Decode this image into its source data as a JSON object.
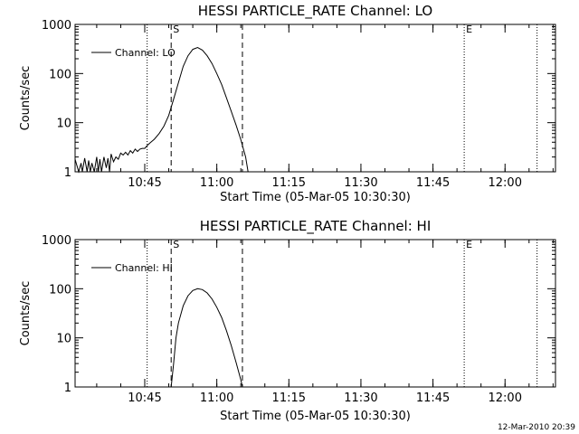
{
  "chart_data": [
    {
      "type": "line",
      "title": "HESSI PARTICLE_RATE Channel: LO",
      "xlabel": "Start Time (05-Mar-05 10:30:30)",
      "ylabel": "Counts/sec",
      "yscale": "log",
      "ylim": [
        1,
        1000
      ],
      "xlim_minutes_from_start": [
        0,
        100
      ],
      "x_ticks": [
        "10:45",
        "11:00",
        "11:15",
        "11:30",
        "11:45",
        "12:00"
      ],
      "y_ticks": [
        "1",
        "10",
        "100",
        "1000"
      ],
      "legend": {
        "label": "Channel: LO",
        "position": "top-left"
      },
      "vertical_markers": [
        {
          "time": "10:45:30",
          "style": "dotted",
          "label": ""
        },
        {
          "time": "10:50:30",
          "style": "dashed",
          "label": "S"
        },
        {
          "time": "11:05:20",
          "style": "dashed",
          "label": ""
        },
        {
          "time": "11:51:30",
          "style": "dotted",
          "label": "E"
        },
        {
          "time": "12:06:40",
          "style": "dotted",
          "label": ""
        }
      ],
      "series": [
        {
          "name": "Channel: LO",
          "x": [
            "10:30:30",
            "10:31:15",
            "10:31:45",
            "10:32:00",
            "10:32:30",
            "10:33:00",
            "10:33:20",
            "10:33:40",
            "10:34:00",
            "10:34:30",
            "10:35:00",
            "10:35:20",
            "10:35:40",
            "10:36:00",
            "10:36:30",
            "10:37:00",
            "10:37:20",
            "10:37:40",
            "10:38:00",
            "10:38:30",
            "10:39:00",
            "10:39:30",
            "10:40:00",
            "10:40:30",
            "10:41:00",
            "10:41:30",
            "10:42:00",
            "10:42:30",
            "10:43:00",
            "10:43:30",
            "10:44:00",
            "10:44:30",
            "10:45:00",
            "10:45:30",
            "10:46:00",
            "10:47:00",
            "10:48:00",
            "10:49:00",
            "10:50:00",
            "10:51:00",
            "10:52:00",
            "10:53:00",
            "10:54:00",
            "10:55:00",
            "10:56:00",
            "10:57:00",
            "10:58:00",
            "10:59:00",
            "11:00:00",
            "11:01:00",
            "11:02:00",
            "11:03:00",
            "11:04:00",
            "11:05:00",
            "11:06:00",
            "11:06:30"
          ],
          "values": [
            1.8,
            1,
            1.5,
            1,
            1.9,
            1,
            1.7,
            1,
            1.5,
            1,
            2,
            1,
            1.8,
            1,
            2,
            1.2,
            1.9,
            1,
            2.3,
            1.6,
            2,
            1.8,
            2.4,
            2.2,
            2.5,
            2.2,
            2.7,
            2.4,
            2.9,
            2.6,
            2.9,
            3,
            3,
            3.4,
            3.8,
            4.6,
            6,
            8.5,
            14,
            30,
            65,
            140,
            230,
            310,
            340,
            300,
            230,
            160,
            100,
            60,
            32,
            17,
            9,
            4.5,
            2,
            1
          ]
        }
      ]
    },
    {
      "type": "line",
      "title": "HESSI PARTICLE_RATE Channel: HI",
      "xlabel": "Start Time (05-Mar-05 10:30:30)",
      "ylabel": "Counts/sec",
      "yscale": "log",
      "ylim": [
        1,
        1000
      ],
      "xlim_minutes_from_start": [
        0,
        100
      ],
      "x_ticks": [
        "10:45",
        "11:00",
        "11:15",
        "11:30",
        "11:45",
        "12:00"
      ],
      "y_ticks": [
        "1",
        "10",
        "100",
        "1000"
      ],
      "legend": {
        "label": "Channel: HI",
        "position": "top-left"
      },
      "vertical_markers": [
        {
          "time": "10:45:30",
          "style": "dotted",
          "label": ""
        },
        {
          "time": "10:50:30",
          "style": "dashed",
          "label": "S"
        },
        {
          "time": "11:05:20",
          "style": "dashed",
          "label": ""
        },
        {
          "time": "11:51:30",
          "style": "dotted",
          "label": "E"
        },
        {
          "time": "12:06:40",
          "style": "dotted",
          "label": ""
        }
      ],
      "series": [
        {
          "name": "Channel: HI",
          "x": [
            "10:50:30",
            "10:51:00",
            "10:51:30",
            "10:52:00",
            "10:53:00",
            "10:54:00",
            "10:55:00",
            "10:56:00",
            "10:57:00",
            "10:58:00",
            "10:59:00",
            "11:00:00",
            "11:01:00",
            "11:02:00",
            "11:03:00",
            "11:04:00",
            "11:05:00",
            "11:05:20"
          ],
          "values": [
            1,
            3,
            10,
            20,
            45,
            72,
            92,
            100,
            96,
            82,
            62,
            42,
            26,
            14,
            7,
            3.2,
            1.4,
            1
          ]
        }
      ]
    }
  ],
  "timestamp": "12-Mar-2010 20:39"
}
